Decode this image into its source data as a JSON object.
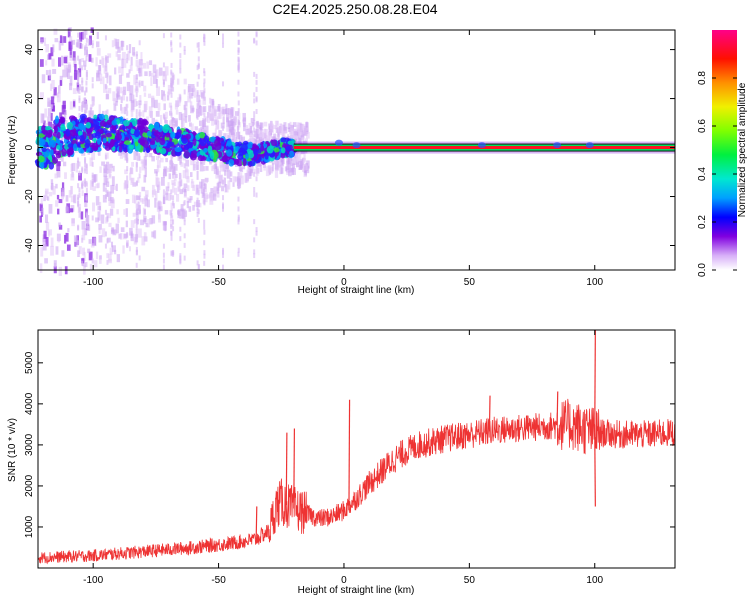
{
  "title": "C2E4.2025.250.08.28.E04",
  "chart_data": [
    {
      "type": "heatmap",
      "xlabel": "Height of straight line (km)",
      "ylabel": "Frequency (Hz)",
      "xlim": [
        -122,
        132
      ],
      "ylim": [
        -50,
        48
      ],
      "xticks": [
        -100,
        -50,
        0,
        50,
        100
      ],
      "yticks": [
        -40,
        -20,
        0,
        20,
        40
      ],
      "colorbar": {
        "label": "Normalized spectral amplitude",
        "range": [
          0,
          1
        ],
        "ticks": [
          0.0,
          0.2,
          0.4,
          0.6,
          0.8
        ]
      },
      "features": {
        "carrier_frequency_hz": 0,
        "carrier_start_km": -20,
        "carrier_end_km": 132,
        "spread_region_km": [
          -122,
          -20
        ],
        "spread_center_freq_hz": [
          [
            -115,
            4
          ],
          [
            -100,
            6
          ],
          [
            -80,
            5
          ],
          [
            -60,
            1
          ],
          [
            -45,
            -2
          ],
          [
            -35,
            -3
          ],
          [
            -25,
            0
          ],
          [
            -20,
            0
          ]
        ]
      }
    },
    {
      "type": "line",
      "xlabel": "Height of straight line (km)",
      "ylabel": "SNR (10 * v/v)",
      "xlim": [
        -122,
        132
      ],
      "ylim": [
        0,
        5800
      ],
      "xticks": [
        -100,
        -50,
        0,
        50,
        100
      ],
      "yticks": [
        1000,
        2000,
        3000,
        4000,
        5000
      ],
      "series": [
        {
          "name": "SNR",
          "color": "#ee3333",
          "envelope": [
            [
              -122,
              250
            ],
            [
              -100,
              300
            ],
            [
              -80,
              400
            ],
            [
              -60,
              500
            ],
            [
              -45,
              600
            ],
            [
              -35,
              700
            ],
            [
              -30,
              900
            ],
            [
              -27,
              1500
            ],
            [
              -25,
              1600
            ],
            [
              -22,
              1500
            ],
            [
              -18,
              1400
            ],
            [
              -10,
              1200
            ],
            [
              -5,
              1250
            ],
            [
              0,
              1400
            ],
            [
              5,
              1700
            ],
            [
              10,
              2050
            ],
            [
              15,
              2350
            ],
            [
              20,
              2650
            ],
            [
              25,
              2850
            ],
            [
              30,
              3000
            ],
            [
              40,
              3150
            ],
            [
              50,
              3250
            ],
            [
              60,
              3350
            ],
            [
              70,
              3400
            ],
            [
              80,
              3450
            ],
            [
              90,
              3500
            ],
            [
              100,
              3300
            ],
            [
              110,
              3250
            ],
            [
              120,
              3250
            ],
            [
              132,
              3300
            ]
          ],
          "noise_amplitude": 350,
          "spikes": [
            [
              -35,
              1500
            ],
            [
              -23,
              3300
            ],
            [
              -20,
              3400
            ],
            [
              2,
              4100
            ],
            [
              58,
              4200
            ],
            [
              85,
              4300
            ],
            [
              100,
              5800
            ],
            [
              100,
              1500
            ]
          ]
        }
      ]
    }
  ]
}
